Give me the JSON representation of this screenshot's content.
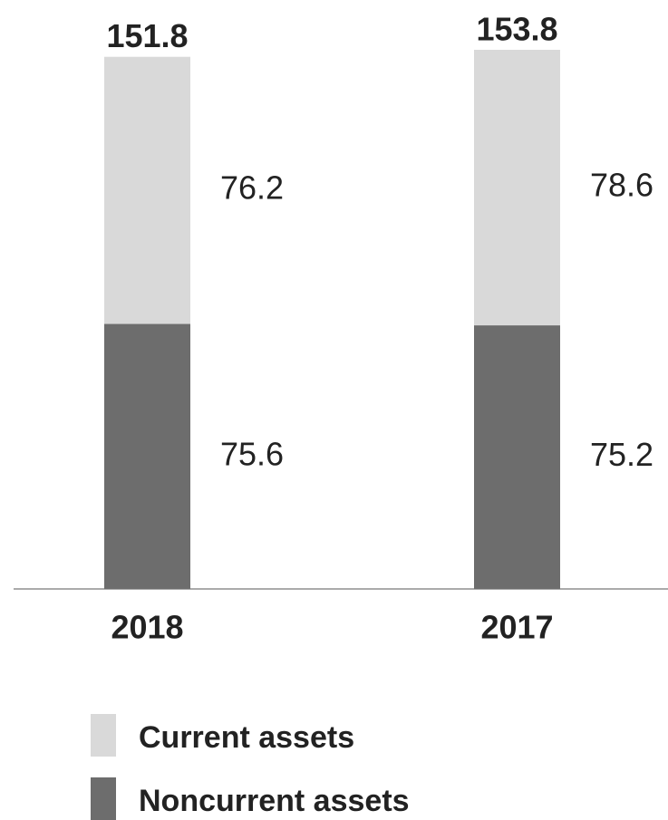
{
  "chart_data": {
    "type": "stacked_bar",
    "categories": [
      "2018",
      "2017"
    ],
    "series": [
      {
        "name": "Current assets",
        "color": "#d9d9d9",
        "values": [
          76.2,
          78.6
        ]
      },
      {
        "name": "Noncurrent assets",
        "color": "#6d6d6d",
        "values": [
          75.6,
          75.2
        ]
      }
    ],
    "totals": [
      151.8,
      153.8
    ],
    "ylim": [
      0,
      160
    ]
  }
}
